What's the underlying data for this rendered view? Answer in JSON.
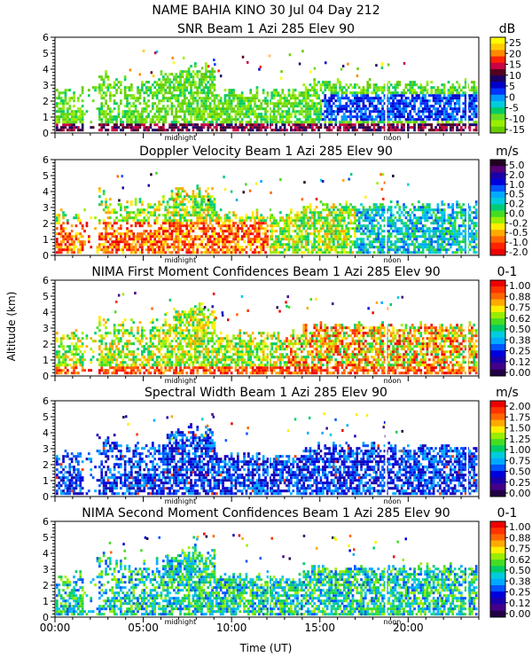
{
  "figure": {
    "header": "NAME BAHIA KINO   30 Jul 04 Day 212",
    "ylabel": "Altitude (km)",
    "xlabel": "Time (UT)",
    "xticks": [
      "00:00",
      "05:00",
      "10:00",
      "15:00",
      "20:00"
    ],
    "xtick_hours": [
      0,
      5,
      10,
      15,
      20
    ],
    "midnight_label": "midnight",
    "noon_label": "noon",
    "midnight_hour": 7.1,
    "noon_hour": 19.1,
    "xlim_hours": [
      0,
      24
    ],
    "ylim_km": [
      0,
      6
    ],
    "yticks": [
      "0",
      "1",
      "2",
      "3",
      "4",
      "5",
      "6"
    ]
  },
  "chart_data": [
    {
      "type": "heatmap",
      "title": "SNR Beam 1 Azi 285 Elev 90",
      "unit": "dB",
      "colorbar_labels": [
        "25",
        "20",
        "15",
        "10",
        "5",
        "0",
        "-5",
        "-10",
        "-15"
      ],
      "colors": [
        "#ffff00",
        "#ffcc00",
        "#ff8800",
        "#ff2200",
        "#cc0044",
        "#55001e",
        "#1a0066",
        "#0000cc",
        "#0033ff",
        "#0099ff",
        "#00ccdd",
        "#00cc66",
        "#66dd22",
        "#99ee00",
        "#66cc00"
      ]
    },
    {
      "type": "heatmap",
      "title": "Doppler Velocity Beam 1 Azi 285 Elev 90",
      "unit": "m/s",
      "colorbar_labels": [
        "5.0",
        "2.0",
        "1.0",
        "0.5",
        "0.2",
        "0.0",
        "-0.2",
        "-0.5",
        "-1.0",
        "-2.0"
      ],
      "colors": [
        "#220022",
        "#550077",
        "#1a00aa",
        "#0000dd",
        "#0055ff",
        "#00aaff",
        "#00ccdd",
        "#00cc77",
        "#44dd22",
        "#99ee00",
        "#ffee00",
        "#ffaa00",
        "#ff6600",
        "#ff2200",
        "#ee0000"
      ]
    },
    {
      "type": "heatmap",
      "title": "NIMA First Moment Confidences Beam 1 Azi 285 Elev 90",
      "unit": "0-1",
      "colorbar_labels": [
        "1.00",
        "0.88",
        "0.75",
        "0.62",
        "0.50",
        "0.38",
        "0.25",
        "0.12",
        "0.00"
      ],
      "colors": [
        "#ee0000",
        "#ff3300",
        "#ff6600",
        "#ffaa00",
        "#ffee00",
        "#99ee00",
        "#44dd22",
        "#00cc66",
        "#00ccdd",
        "#00aaff",
        "#0055ff",
        "#0000dd",
        "#1a00aa",
        "#440088",
        "#220044"
      ]
    },
    {
      "type": "heatmap",
      "title": "Spectral Width Beam 1 Azi 285 Elev 90",
      "unit": "m/s",
      "colorbar_labels": [
        "2.00",
        "1.75",
        "1.50",
        "1.25",
        "1.00",
        "0.75",
        "0.50",
        "0.25",
        "0.00"
      ],
      "colors": [
        "#ee0000",
        "#ff3300",
        "#ff6600",
        "#ffaa00",
        "#ffee00",
        "#99ee00",
        "#44dd22",
        "#00cc66",
        "#00ccdd",
        "#00aaff",
        "#0055ff",
        "#0000dd",
        "#1a00aa",
        "#440088",
        "#220044"
      ]
    },
    {
      "type": "heatmap",
      "title": "NIMA Second Moment Confidences Beam 1 Azi 285 Elev 90",
      "unit": "0-1",
      "colorbar_labels": [
        "1.00",
        "0.88",
        "0.75",
        "0.62",
        "0.50",
        "0.38",
        "0.25",
        "0.12",
        "0.00"
      ],
      "colors": [
        "#ee0000",
        "#ff3300",
        "#ff6600",
        "#ffaa00",
        "#ffee00",
        "#99ee00",
        "#44dd22",
        "#00cc66",
        "#00ccdd",
        "#00aaff",
        "#0055ff",
        "#0000dd",
        "#1a00aa",
        "#440088",
        "#220044"
      ]
    }
  ]
}
